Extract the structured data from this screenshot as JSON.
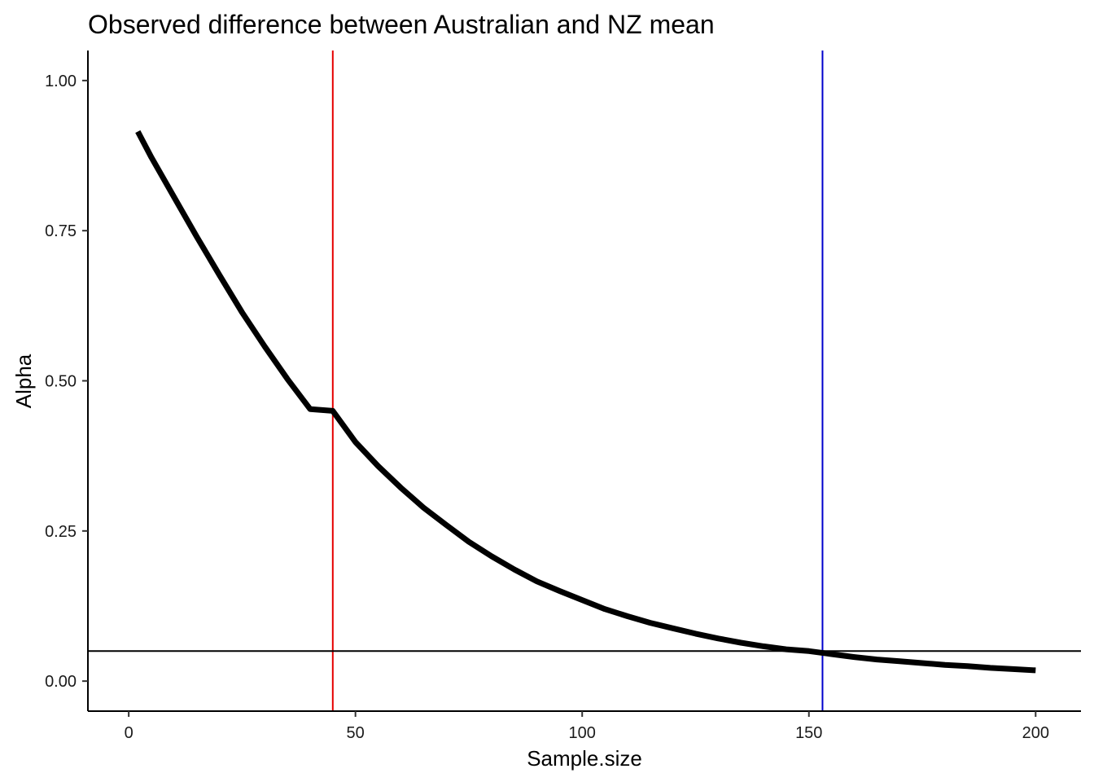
{
  "chart_data": {
    "type": "line",
    "title": "Observed difference between Australian and NZ mean",
    "xlabel": "Sample.size",
    "ylabel": "Alpha",
    "xlim": [
      -9,
      210
    ],
    "ylim": [
      -0.05,
      1.05
    ],
    "x_ticks": [
      0,
      50,
      100,
      150,
      200
    ],
    "x_tick_labels": [
      "0",
      "50",
      "100",
      "150",
      "200"
    ],
    "y_ticks": [
      0.0,
      0.25,
      0.5,
      0.75,
      1.0
    ],
    "y_tick_labels": [
      "0.00",
      "0.25",
      "0.50",
      "0.75",
      "1.00"
    ],
    "grid": false,
    "series": [
      {
        "color": "#000000",
        "x": [
          2,
          5,
          10,
          15,
          20,
          25,
          30,
          35,
          40,
          45,
          50,
          55,
          60,
          65,
          70,
          75,
          80,
          85,
          90,
          95,
          100,
          105,
          110,
          115,
          120,
          125,
          130,
          135,
          140,
          145,
          150,
          155,
          160,
          165,
          170,
          175,
          180,
          185,
          190,
          195,
          200
        ],
        "y": [
          0.915,
          0.872,
          0.806,
          0.74,
          0.676,
          0.614,
          0.557,
          0.503,
          0.453,
          0.45,
          0.398,
          0.358,
          0.322,
          0.289,
          0.26,
          0.232,
          0.208,
          0.186,
          0.166,
          0.15,
          0.135,
          0.12,
          0.108,
          0.097,
          0.088,
          0.079,
          0.071,
          0.064,
          0.058,
          0.053,
          0.05,
          0.045,
          0.04,
          0.036,
          0.033,
          0.03,
          0.027,
          0.025,
          0.022,
          0.02,
          0.018
        ]
      }
    ],
    "reference_lines": [
      {
        "orientation": "vertical",
        "value": 45,
        "color": "#e60000"
      },
      {
        "orientation": "vertical",
        "value": 153,
        "color": "#0000cc"
      },
      {
        "orientation": "horizontal",
        "value": 0.05,
        "color": "#000000"
      }
    ]
  }
}
